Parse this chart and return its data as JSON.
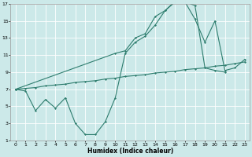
{
  "xlabel": "Humidex (Indice chaleur)",
  "background_color": "#cce9e9",
  "grid_color": "#ffffff",
  "line_color": "#2e7d6e",
  "xlim": [
    -0.5,
    23.5
  ],
  "ylim": [
    1,
    17
  ],
  "xticks": [
    0,
    1,
    2,
    3,
    4,
    5,
    6,
    7,
    8,
    9,
    10,
    11,
    12,
    13,
    14,
    15,
    16,
    17,
    18,
    19,
    20,
    21,
    22,
    23
  ],
  "yticks": [
    1,
    3,
    5,
    7,
    9,
    11,
    13,
    15,
    17
  ],
  "line1_x": [
    0,
    1,
    2,
    3,
    4,
    5,
    6,
    7,
    8,
    9,
    10,
    11,
    12,
    13,
    14,
    15,
    16,
    17,
    18,
    19,
    20,
    21
  ],
  "line1_y": [
    7,
    6.8,
    4.5,
    5.8,
    4.8,
    6.0,
    3.0,
    1.7,
    1.7,
    3.2,
    6.0,
    11.2,
    12.5,
    13.2,
    14.5,
    16.2,
    17.2,
    17.2,
    16.8,
    9.5,
    9.2,
    9.0
  ],
  "line2_x": [
    0,
    10,
    11,
    12,
    13,
    14,
    15,
    16,
    17,
    18,
    19,
    20,
    21,
    22,
    23
  ],
  "line2_y": [
    7,
    11.2,
    11.5,
    13.0,
    13.5,
    15.5,
    16.2,
    17.3,
    17.2,
    15.2,
    12.5,
    15.0,
    9.2,
    9.5,
    10.5
  ],
  "line3_x": [
    0,
    1,
    2,
    3,
    4,
    5,
    6,
    7,
    8,
    9,
    10,
    11,
    12,
    13,
    14,
    15,
    16,
    17,
    18,
    19,
    20,
    21,
    22,
    23
  ],
  "line3_y": [
    7,
    7.1,
    7.2,
    7.4,
    7.5,
    7.6,
    7.8,
    7.9,
    8.0,
    8.2,
    8.3,
    8.5,
    8.6,
    8.7,
    8.9,
    9.0,
    9.1,
    9.3,
    9.4,
    9.5,
    9.7,
    9.8,
    10.0,
    10.2
  ]
}
